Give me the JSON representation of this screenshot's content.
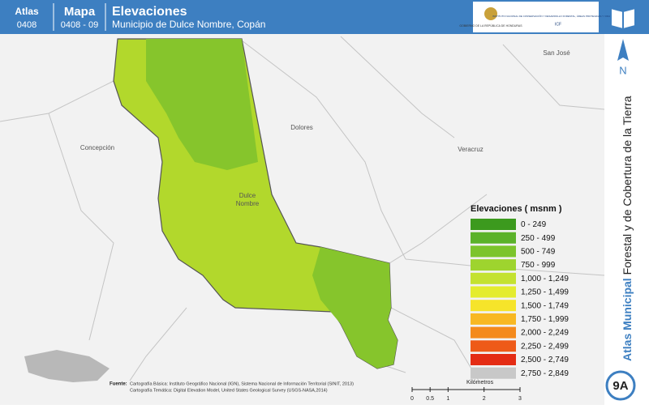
{
  "header": {
    "atlas_label": "Atlas",
    "atlas_code": "0408",
    "mapa_label": "Mapa",
    "mapa_code": "0408 - 09",
    "title": "Elevaciones",
    "subtitle": "Municipio de Dulce Nombre, Copán",
    "logo_left": "GOBIERNO DE LA REPÚBLICA DE HONDURAS",
    "logo_right": "INSTITUTO NACIONAL DE CONSERVACIÓN Y DESARROLLO FORESTAL, ÁREAS PROTEGIDAS Y VIDA SILVESTRE",
    "logo_acronym": "ICF"
  },
  "places": [
    "San José",
    "Dolores",
    "Concepción",
    "Veracruz",
    "Dulce Nombre"
  ],
  "legend": {
    "title": "Elevaciones ( msnm )",
    "items": [
      {
        "label": "0 - 249",
        "color": "#3c9a1e"
      },
      {
        "label": "250 - 499",
        "color": "#5bb22a"
      },
      {
        "label": "500 - 749",
        "color": "#7cc42c"
      },
      {
        "label": "750 - 999",
        "color": "#9ed42e"
      },
      {
        "label": "1,000 - 1,249",
        "color": "#c4e230"
      },
      {
        "label": "1,250 - 1,499",
        "color": "#e4ec2e"
      },
      {
        "label": "1,500 - 1,749",
        "color": "#f6e42a"
      },
      {
        "label": "1,750 - 1,999",
        "color": "#f8b822"
      },
      {
        "label": "2,000 - 2,249",
        "color": "#f48a1c"
      },
      {
        "label": "2,250 - 2,499",
        "color": "#ee5a18"
      },
      {
        "label": "2,500 - 2,749",
        "color": "#e42c14"
      },
      {
        "label": "2,750 - 2,849",
        "color": "#c8c8c8"
      }
    ]
  },
  "sidebar": {
    "north": "N",
    "title_bold": "Atlas Municipal",
    "title_rest": " Forestal y de Cobertura de la Tierra",
    "badge": "9A"
  },
  "source": {
    "label": "Fuente:",
    "line1": "Cartografía Básica: Instituto Geográfico Nacional (IGN), Sistema Nacional de Información Territorial (SINIT, 2013)",
    "line2": "Cartografía Temática: Digital Elevation Model, United States Geological Survey (USGS-NASA,2014)"
  },
  "scale": {
    "ticks": [
      0,
      0.5,
      1,
      2,
      3
    ],
    "unit": "Kilómetros"
  }
}
